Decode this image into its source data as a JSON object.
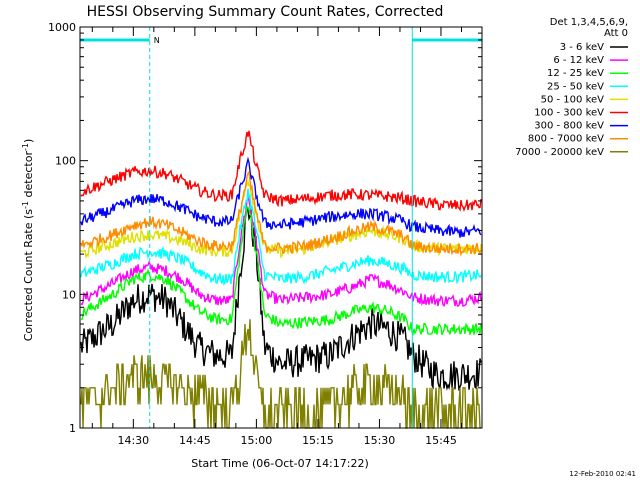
{
  "chart_data": {
    "type": "line",
    "title": "HESSI Observing Summary Count Rates, Corrected",
    "ylabel_parts": [
      "Corrected Count Rate (s",
      "-1",
      " detector",
      "-1",
      ")"
    ],
    "xlabel": "Start Time (06-Oct-07 14:17:22)",
    "x_range": [
      "14:17",
      "15:55"
    ],
    "y_scale": "log",
    "ylim": [
      1,
      1000
    ],
    "x_ticks": [
      "14:30",
      "14:45",
      "15:00",
      "15:15",
      "15:30",
      "15:45"
    ],
    "y_tick_labels": [
      "1",
      "10",
      "100",
      "1000"
    ],
    "y_ticks": [
      1,
      10,
      100,
      1000
    ],
    "grid": false,
    "legend_header": [
      "Det 1,3,4,5,6,9,",
      "Att 0"
    ],
    "legend_placement": "right",
    "footer_date": "12-Feb-2010 02:41",
    "annotation": "N",
    "status_bar_color": "#00e0e0",
    "night_intervals": [
      [
        "14:17",
        "14:34"
      ],
      [
        "15:38",
        "15:55"
      ]
    ],
    "flare_peak_time": "14:58",
    "series": [
      {
        "name": "3 - 6 keV",
        "color": "#000000",
        "x": [
          "14:17",
          "14:25",
          "14:30",
          "14:34",
          "14:38",
          "14:42",
          "14:46",
          "14:50",
          "14:54",
          "14:56",
          "14:58",
          "15:00",
          "15:02",
          "15:06",
          "15:12",
          "15:18",
          "15:24",
          "15:28",
          "15:32",
          "15:36",
          "15:38",
          "15:44",
          "15:50",
          "15:55"
        ],
        "values": [
          4,
          6,
          9,
          10,
          9,
          6,
          4,
          3.5,
          3.5,
          15,
          47,
          20,
          4,
          3,
          3.2,
          3.5,
          5,
          6,
          5.5,
          4.5,
          3.5,
          2.5,
          2.5,
          2.6
        ]
      },
      {
        "name": "6 - 12 keV",
        "color": "#ff00ff",
        "x": [
          "14:17",
          "14:25",
          "14:30",
          "14:34",
          "14:38",
          "14:42",
          "14:46",
          "14:50",
          "14:54",
          "14:56",
          "14:58",
          "15:00",
          "15:02",
          "15:06",
          "15:12",
          "15:18",
          "15:24",
          "15:28",
          "15:32",
          "15:36",
          "15:38",
          "15:44",
          "15:50",
          "15:55"
        ],
        "values": [
          9,
          12,
          15,
          16,
          15,
          13,
          10,
          9,
          9,
          25,
          55,
          25,
          10,
          9,
          9.5,
          10,
          11.5,
          13,
          12,
          10.5,
          9.5,
          9,
          9,
          9.5
        ]
      },
      {
        "name": "12 - 25 keV",
        "color": "#00ff00",
        "x": [
          "14:17",
          "14:25",
          "14:30",
          "14:34",
          "14:38",
          "14:42",
          "14:46",
          "14:50",
          "14:54",
          "14:56",
          "14:58",
          "15:00",
          "15:02",
          "15:06",
          "15:12",
          "15:18",
          "15:24",
          "15:28",
          "15:32",
          "15:36",
          "15:38",
          "15:44",
          "15:50",
          "15:55"
        ],
        "values": [
          7,
          10,
          13,
          14,
          13,
          10,
          7.5,
          6.5,
          6.5,
          20,
          50,
          20,
          7,
          6,
          6.2,
          6.5,
          7.5,
          8,
          7.5,
          6.5,
          5.5,
          5.5,
          5.5,
          5.5
        ]
      },
      {
        "name": "25 - 50 keV",
        "color": "#00ffff",
        "x": [
          "14:17",
          "14:25",
          "14:30",
          "14:34",
          "14:38",
          "14:42",
          "14:46",
          "14:50",
          "14:54",
          "14:56",
          "14:58",
          "15:00",
          "15:02",
          "15:06",
          "15:12",
          "15:18",
          "15:24",
          "15:28",
          "15:32",
          "15:36",
          "15:38",
          "15:44",
          "15:50",
          "15:55"
        ],
        "values": [
          14,
          17,
          20,
          21,
          20,
          18,
          15,
          13,
          13,
          30,
          60,
          30,
          14,
          13,
          13.5,
          15,
          17,
          18,
          17,
          15.5,
          14,
          13.5,
          13.5,
          14
        ]
      },
      {
        "name": "50 - 100 keV",
        "color": "#e0e000",
        "x": [
          "14:17",
          "14:25",
          "14:30",
          "14:34",
          "14:38",
          "14:42",
          "14:46",
          "14:50",
          "14:54",
          "14:56",
          "14:58",
          "15:00",
          "15:02",
          "15:06",
          "15:12",
          "15:18",
          "15:24",
          "15:28",
          "15:32",
          "15:36",
          "15:38",
          "15:44",
          "15:50",
          "15:55"
        ],
        "values": [
          20,
          24,
          27,
          28,
          27,
          25,
          22,
          21,
          21,
          40,
          75,
          40,
          22,
          21,
          22,
          25,
          28,
          30,
          28,
          26,
          23,
          22,
          22,
          22
        ]
      },
      {
        "name": "100 - 300 keV",
        "color": "#ff0000",
        "x": [
          "14:17",
          "14:25",
          "14:30",
          "14:34",
          "14:38",
          "14:42",
          "14:46",
          "14:50",
          "14:54",
          "14:56",
          "14:58",
          "15:00",
          "15:02",
          "15:06",
          "15:12",
          "15:18",
          "15:24",
          "15:28",
          "15:32",
          "15:36",
          "15:38",
          "15:44",
          "15:50",
          "15:55"
        ],
        "values": [
          58,
          72,
          82,
          84,
          80,
          70,
          60,
          55,
          55,
          100,
          165,
          90,
          55,
          50,
          52,
          55,
          56,
          55,
          54,
          52,
          50,
          47,
          46,
          47
        ]
      },
      {
        "name": "300 - 800 keV",
        "color": "#0000ff",
        "x": [
          "14:17",
          "14:25",
          "14:30",
          "14:34",
          "14:38",
          "14:42",
          "14:46",
          "14:50",
          "14:54",
          "14:56",
          "14:58",
          "15:00",
          "15:02",
          "15:06",
          "15:12",
          "15:18",
          "15:24",
          "15:28",
          "15:32",
          "15:36",
          "15:38",
          "15:44",
          "15:50",
          "15:55"
        ],
        "values": [
          35,
          43,
          50,
          52,
          50,
          44,
          38,
          35,
          35,
          60,
          95,
          55,
          34,
          33,
          35,
          38,
          40,
          40,
          38,
          35,
          32,
          30,
          29,
          30
        ]
      },
      {
        "name": "800 - 7000 keV",
        "color": "#ff8c00",
        "x": [
          "14:17",
          "14:25",
          "14:30",
          "14:34",
          "14:38",
          "14:42",
          "14:46",
          "14:50",
          "14:54",
          "14:56",
          "14:58",
          "15:00",
          "15:02",
          "15:06",
          "15:12",
          "15:18",
          "15:24",
          "15:28",
          "15:32",
          "15:36",
          "15:38",
          "15:44",
          "15:50",
          "15:55"
        ],
        "values": [
          23,
          28,
          33,
          35,
          33,
          29,
          25,
          23,
          23,
          42,
          80,
          40,
          23,
          22,
          23,
          26,
          30,
          32,
          30,
          27,
          23,
          22,
          22,
          22
        ]
      },
      {
        "name": "7000 - 20000 keV",
        "color": "#808000",
        "x": [
          "14:17",
          "14:25",
          "14:30",
          "14:34",
          "14:38",
          "14:42",
          "14:46",
          "14:50",
          "14:54",
          "14:56",
          "14:58",
          "15:00",
          "15:02",
          "15:06",
          "15:12",
          "15:18",
          "15:24",
          "15:28",
          "15:32",
          "15:36",
          "15:38",
          "15:44",
          "15:50",
          "15:55"
        ],
        "values": [
          1.5,
          2,
          2.5,
          2.5,
          2.3,
          2,
          1.8,
          1.5,
          1.5,
          2.5,
          6.5,
          2.5,
          1,
          1,
          1,
          1.5,
          2,
          2.2,
          2,
          1.8,
          1,
          1,
          1,
          1
        ]
      }
    ]
  }
}
